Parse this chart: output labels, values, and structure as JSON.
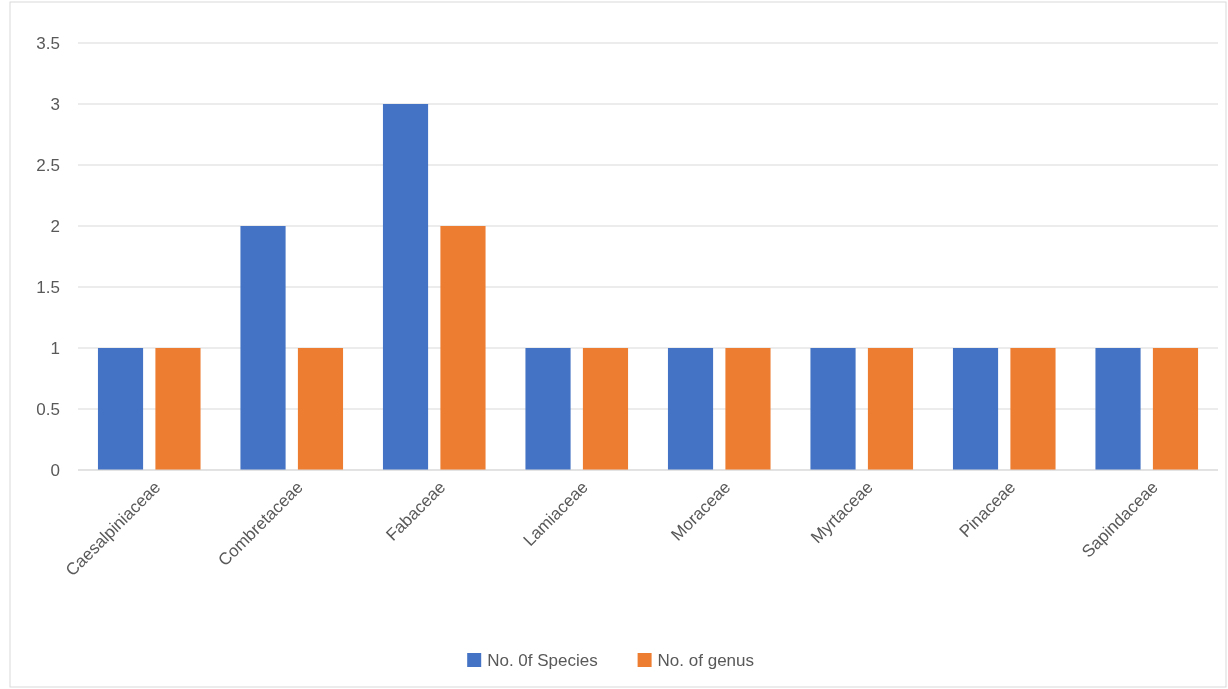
{
  "chart_data": {
    "type": "bar",
    "categories": [
      "Caesalpiniaceae",
      "Combretaceae",
      "Fabaceae",
      "Lamiaceae",
      "Moraceae",
      "Myrtaceae",
      "Pinaceae",
      "Sapindaceae"
    ],
    "series": [
      {
        "name": "No. 0f Species",
        "color": "#4472c4",
        "values": [
          1,
          2,
          3,
          1,
          1,
          1,
          1,
          1
        ]
      },
      {
        "name": "No. of genus",
        "color": "#ed7d31",
        "values": [
          1,
          1,
          2,
          1,
          1,
          1,
          1,
          1
        ]
      }
    ],
    "ylim": [
      0,
      3.5
    ],
    "yticks": [
      0,
      0.5,
      1,
      1.5,
      2,
      2.5,
      3,
      3.5
    ],
    "grid": "y",
    "legend": "bottom"
  }
}
